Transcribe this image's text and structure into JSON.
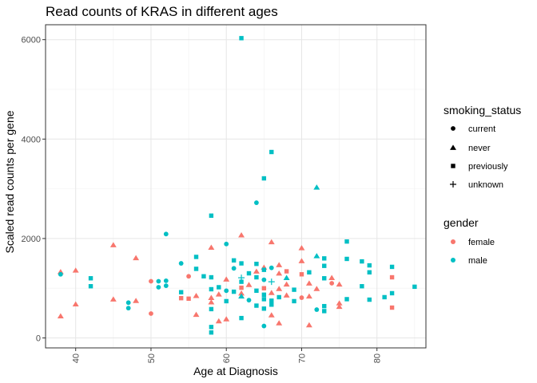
{
  "chart_data": {
    "type": "scatter",
    "title": "Read counts of KRAS in different ages",
    "xlabel": "Age at Diagnosis",
    "ylabel": "Scaled read counts per gene",
    "xlim": [
      36,
      86.5
    ],
    "ylim": [
      -200,
      6300
    ],
    "xticks": [
      40,
      50,
      60,
      70,
      80
    ],
    "yticks": [
      0,
      2000,
      4000,
      6000
    ],
    "grid": true,
    "legend_position": "right",
    "legends": [
      {
        "title": "smoking_status",
        "entries": [
          {
            "label": "current",
            "shape": "circle"
          },
          {
            "label": "never",
            "shape": "triangle"
          },
          {
            "label": "previously",
            "shape": "square"
          },
          {
            "label": "unknown",
            "shape": "plus"
          }
        ]
      },
      {
        "title": "gender",
        "entries": [
          {
            "label": "female",
            "color": "#F8766D"
          },
          {
            "label": "male",
            "color": "#00BFC4"
          }
        ]
      }
    ],
    "colors": {
      "female": "#F8766D",
      "male": "#00BFC4"
    },
    "points": [
      {
        "x": 62,
        "y": 6030,
        "gender": "male",
        "smoking_status": "previously"
      },
      {
        "x": 66,
        "y": 3740,
        "gender": "male",
        "smoking_status": "previously"
      },
      {
        "x": 65,
        "y": 3210,
        "gender": "male",
        "smoking_status": "previously"
      },
      {
        "x": 72,
        "y": 3030,
        "gender": "male",
        "smoking_status": "never"
      },
      {
        "x": 64,
        "y": 2720,
        "gender": "male",
        "smoking_status": "current"
      },
      {
        "x": 58,
        "y": 2460,
        "gender": "male",
        "smoking_status": "previously"
      },
      {
        "x": 52,
        "y": 2090,
        "gender": "male",
        "smoking_status": "current"
      },
      {
        "x": 62,
        "y": 2070,
        "gender": "female",
        "smoking_status": "never"
      },
      {
        "x": 76,
        "y": 1940,
        "gender": "male",
        "smoking_status": "previously"
      },
      {
        "x": 66,
        "y": 1930,
        "gender": "female",
        "smoking_status": "never"
      },
      {
        "x": 60,
        "y": 1890,
        "gender": "male",
        "smoking_status": "current"
      },
      {
        "x": 45,
        "y": 1870,
        "gender": "female",
        "smoking_status": "never"
      },
      {
        "x": 58,
        "y": 1820,
        "gender": "female",
        "smoking_status": "never"
      },
      {
        "x": 70,
        "y": 1810,
        "gender": "female",
        "smoking_status": "never"
      },
      {
        "x": 72,
        "y": 1650,
        "gender": "male",
        "smoking_status": "never"
      },
      {
        "x": 56,
        "y": 1630,
        "gender": "male",
        "smoking_status": "previously"
      },
      {
        "x": 48,
        "y": 1610,
        "gender": "female",
        "smoking_status": "never"
      },
      {
        "x": 73,
        "y": 1600,
        "gender": "male",
        "smoking_status": "previously"
      },
      {
        "x": 76,
        "y": 1590,
        "gender": "male",
        "smoking_status": "previously"
      },
      {
        "x": 78,
        "y": 1540,
        "gender": "male",
        "smoking_status": "previously"
      },
      {
        "x": 61,
        "y": 1560,
        "gender": "male",
        "smoking_status": "previously"
      },
      {
        "x": 70,
        "y": 1550,
        "gender": "female",
        "smoking_status": "never"
      },
      {
        "x": 62,
        "y": 1500,
        "gender": "male",
        "smoking_status": "previously"
      },
      {
        "x": 54,
        "y": 1500,
        "gender": "male",
        "smoking_status": "current"
      },
      {
        "x": 64,
        "y": 1490,
        "gender": "male",
        "smoking_status": "previously"
      },
      {
        "x": 67,
        "y": 1470,
        "gender": "female",
        "smoking_status": "never"
      },
      {
        "x": 79,
        "y": 1460,
        "gender": "male",
        "smoking_status": "previously"
      },
      {
        "x": 73,
        "y": 1450,
        "gender": "male",
        "smoking_status": "previously"
      },
      {
        "x": 65,
        "y": 1420,
        "gender": "female",
        "smoking_status": "never"
      },
      {
        "x": 66,
        "y": 1410,
        "gender": "male",
        "smoking_status": "current"
      },
      {
        "x": 82,
        "y": 1430,
        "gender": "male",
        "smoking_status": "previously"
      },
      {
        "x": 61,
        "y": 1400,
        "gender": "male",
        "smoking_status": "current"
      },
      {
        "x": 56,
        "y": 1390,
        "gender": "male",
        "smoking_status": "previously"
      },
      {
        "x": 65,
        "y": 1370,
        "gender": "male",
        "smoking_status": "previously"
      },
      {
        "x": 38,
        "y": 1330,
        "gender": "female",
        "smoking_status": "never"
      },
      {
        "x": 40,
        "y": 1360,
        "gender": "female",
        "smoking_status": "never"
      },
      {
        "x": 68,
        "y": 1340,
        "gender": "female",
        "smoking_status": "previously"
      },
      {
        "x": 64,
        "y": 1340,
        "gender": "female",
        "smoking_status": "never"
      },
      {
        "x": 71,
        "y": 1320,
        "gender": "male",
        "smoking_status": "previously"
      },
      {
        "x": 79,
        "y": 1320,
        "gender": "male",
        "smoking_status": "previously"
      },
      {
        "x": 63,
        "y": 1300,
        "gender": "male",
        "smoking_status": "previously"
      },
      {
        "x": 67,
        "y": 1300,
        "gender": "female",
        "smoking_status": "never"
      },
      {
        "x": 38,
        "y": 1280,
        "gender": "male",
        "smoking_status": "current"
      },
      {
        "x": 70,
        "y": 1280,
        "gender": "female",
        "smoking_status": "previously"
      },
      {
        "x": 55,
        "y": 1240,
        "gender": "female",
        "smoking_status": "current"
      },
      {
        "x": 57,
        "y": 1240,
        "gender": "male",
        "smoking_status": "previously"
      },
      {
        "x": 58,
        "y": 1220,
        "gender": "male",
        "smoking_status": "previously"
      },
      {
        "x": 62,
        "y": 1210,
        "gender": "male",
        "smoking_status": "plus_unknown"
      },
      {
        "x": 64,
        "y": 1220,
        "gender": "male",
        "smoking_status": "previously"
      },
      {
        "x": 68,
        "y": 1210,
        "gender": "male",
        "smoking_status": "never"
      },
      {
        "x": 74,
        "y": 1210,
        "gender": "female",
        "smoking_status": "never"
      },
      {
        "x": 82,
        "y": 1220,
        "gender": "female",
        "smoking_status": "previously"
      },
      {
        "x": 42,
        "y": 1200,
        "gender": "male",
        "smoking_status": "previously"
      },
      {
        "x": 73,
        "y": 1200,
        "gender": "male",
        "smoking_status": "previously"
      },
      {
        "x": 60,
        "y": 1180,
        "gender": "female",
        "smoking_status": "never"
      },
      {
        "x": 65,
        "y": 1170,
        "gender": "male",
        "smoking_status": "current"
      },
      {
        "x": 51,
        "y": 1140,
        "gender": "male",
        "smoking_status": "current"
      },
      {
        "x": 52,
        "y": 1150,
        "gender": "male",
        "smoking_status": "current"
      },
      {
        "x": 50,
        "y": 1140,
        "gender": "female",
        "smoking_status": "current"
      },
      {
        "x": 62,
        "y": 1130,
        "gender": "male",
        "smoking_status": "previously"
      },
      {
        "x": 66,
        "y": 1130,
        "gender": "male",
        "smoking_status": "plus_unknown"
      },
      {
        "x": 74,
        "y": 1100,
        "gender": "female",
        "smoking_status": "current"
      },
      {
        "x": 71,
        "y": 1100,
        "gender": "female",
        "smoking_status": "never"
      },
      {
        "x": 75,
        "y": 1080,
        "gender": "female",
        "smoking_status": "never"
      },
      {
        "x": 68,
        "y": 1080,
        "gender": "female",
        "smoking_status": "never"
      },
      {
        "x": 63,
        "y": 1070,
        "gender": "female",
        "smoking_status": "never"
      },
      {
        "x": 52,
        "y": 1050,
        "gender": "male",
        "smoking_status": "current"
      },
      {
        "x": 42,
        "y": 1040,
        "gender": "male",
        "smoking_status": "previously"
      },
      {
        "x": 78,
        "y": 1040,
        "gender": "male",
        "smoking_status": "previously"
      },
      {
        "x": 85,
        "y": 1030,
        "gender": "male",
        "smoking_status": "previously"
      },
      {
        "x": 51,
        "y": 1020,
        "gender": "male",
        "smoking_status": "current"
      },
      {
        "x": 59,
        "y": 1020,
        "gender": "male",
        "smoking_status": "previously"
      },
      {
        "x": 62,
        "y": 1010,
        "gender": "female",
        "smoking_status": "previously"
      },
      {
        "x": 65,
        "y": 1000,
        "gender": "female",
        "smoking_status": "previously"
      },
      {
        "x": 67,
        "y": 990,
        "gender": "female",
        "smoking_status": "never"
      },
      {
        "x": 72,
        "y": 990,
        "gender": "female",
        "smoking_status": "never"
      },
      {
        "x": 58,
        "y": 980,
        "gender": "male",
        "smoking_status": "previously"
      },
      {
        "x": 69,
        "y": 970,
        "gender": "male",
        "smoking_status": "previously"
      },
      {
        "x": 60,
        "y": 950,
        "gender": "male",
        "smoking_status": "current"
      },
      {
        "x": 64,
        "y": 950,
        "gender": "male",
        "smoking_status": "previously"
      },
      {
        "x": 61,
        "y": 930,
        "gender": "male",
        "smoking_status": "previously"
      },
      {
        "x": 54,
        "y": 920,
        "gender": "male",
        "smoking_status": "previously"
      },
      {
        "x": 66,
        "y": 910,
        "gender": "female",
        "smoking_status": "never"
      },
      {
        "x": 62,
        "y": 900,
        "gender": "female",
        "smoking_status": "never"
      },
      {
        "x": 82,
        "y": 900,
        "gender": "male",
        "smoking_status": "previously"
      },
      {
        "x": 59,
        "y": 880,
        "gender": "female",
        "smoking_status": "never"
      },
      {
        "x": 65,
        "y": 870,
        "gender": "male",
        "smoking_status": "previously"
      },
      {
        "x": 68,
        "y": 860,
        "gender": "female",
        "smoking_status": "never"
      },
      {
        "x": 56,
        "y": 850,
        "gender": "female",
        "smoking_status": "never"
      },
      {
        "x": 62,
        "y": 840,
        "gender": "male",
        "smoking_status": "never"
      },
      {
        "x": 71,
        "y": 840,
        "gender": "female",
        "smoking_status": "never"
      },
      {
        "x": 67,
        "y": 820,
        "gender": "male",
        "smoking_status": "previously"
      },
      {
        "x": 81,
        "y": 820,
        "gender": "male",
        "smoking_status": "previously"
      },
      {
        "x": 58,
        "y": 810,
        "gender": "female",
        "smoking_status": "never"
      },
      {
        "x": 70,
        "y": 810,
        "gender": "female",
        "smoking_status": "current"
      },
      {
        "x": 54,
        "y": 800,
        "gender": "female",
        "smoking_status": "previously"
      },
      {
        "x": 55,
        "y": 790,
        "gender": "female",
        "smoking_status": "previously"
      },
      {
        "x": 45,
        "y": 780,
        "gender": "female",
        "smoking_status": "never"
      },
      {
        "x": 65,
        "y": 780,
        "gender": "male",
        "smoking_status": "previously"
      },
      {
        "x": 76,
        "y": 780,
        "gender": "male",
        "smoking_status": "previously"
      },
      {
        "x": 79,
        "y": 770,
        "gender": "male",
        "smoking_status": "previously"
      },
      {
        "x": 63,
        "y": 760,
        "gender": "male",
        "smoking_status": "current"
      },
      {
        "x": 48,
        "y": 750,
        "gender": "female",
        "smoking_status": "never"
      },
      {
        "x": 66,
        "y": 750,
        "gender": "male",
        "smoking_status": "previously"
      },
      {
        "x": 60,
        "y": 740,
        "gender": "male",
        "smoking_status": "previously"
      },
      {
        "x": 69,
        "y": 740,
        "gender": "male",
        "smoking_status": "previously"
      },
      {
        "x": 58,
        "y": 720,
        "gender": "female",
        "smoking_status": "never"
      },
      {
        "x": 47,
        "y": 710,
        "gender": "male",
        "smoking_status": "current"
      },
      {
        "x": 75,
        "y": 700,
        "gender": "female",
        "smoking_status": "never"
      },
      {
        "x": 40,
        "y": 680,
        "gender": "female",
        "smoking_status": "never"
      },
      {
        "x": 66,
        "y": 670,
        "gender": "male",
        "smoking_status": "previously"
      },
      {
        "x": 64,
        "y": 650,
        "gender": "male",
        "smoking_status": "previously"
      },
      {
        "x": 73,
        "y": 640,
        "gender": "male",
        "smoking_status": "previously"
      },
      {
        "x": 75,
        "y": 630,
        "gender": "female",
        "smoking_status": "never"
      },
      {
        "x": 82,
        "y": 610,
        "gender": "female",
        "smoking_status": "previously"
      },
      {
        "x": 47,
        "y": 600,
        "gender": "male",
        "smoking_status": "current"
      },
      {
        "x": 65,
        "y": 590,
        "gender": "male",
        "smoking_status": "previously"
      },
      {
        "x": 58,
        "y": 580,
        "gender": "male",
        "smoking_status": "previously"
      },
      {
        "x": 72,
        "y": 570,
        "gender": "male",
        "smoking_status": "current"
      },
      {
        "x": 73,
        "y": 540,
        "gender": "male",
        "smoking_status": "previously"
      },
      {
        "x": 50,
        "y": 490,
        "gender": "female",
        "smoking_status": "current"
      },
      {
        "x": 56,
        "y": 470,
        "gender": "female",
        "smoking_status": "never"
      },
      {
        "x": 66,
        "y": 460,
        "gender": "female",
        "smoking_status": "never"
      },
      {
        "x": 38,
        "y": 440,
        "gender": "female",
        "smoking_status": "never"
      },
      {
        "x": 62,
        "y": 400,
        "gender": "male",
        "smoking_status": "previously"
      },
      {
        "x": 60,
        "y": 380,
        "gender": "female",
        "smoking_status": "never"
      },
      {
        "x": 59,
        "y": 340,
        "gender": "female",
        "smoking_status": "never"
      },
      {
        "x": 67,
        "y": 300,
        "gender": "female",
        "smoking_status": "never"
      },
      {
        "x": 71,
        "y": 260,
        "gender": "female",
        "smoking_status": "never"
      },
      {
        "x": 65,
        "y": 240,
        "gender": "male",
        "smoking_status": "current"
      },
      {
        "x": 58,
        "y": 220,
        "gender": "male",
        "smoking_status": "previously"
      },
      {
        "x": 58,
        "y": 110,
        "gender": "male",
        "smoking_status": "previously"
      }
    ]
  }
}
